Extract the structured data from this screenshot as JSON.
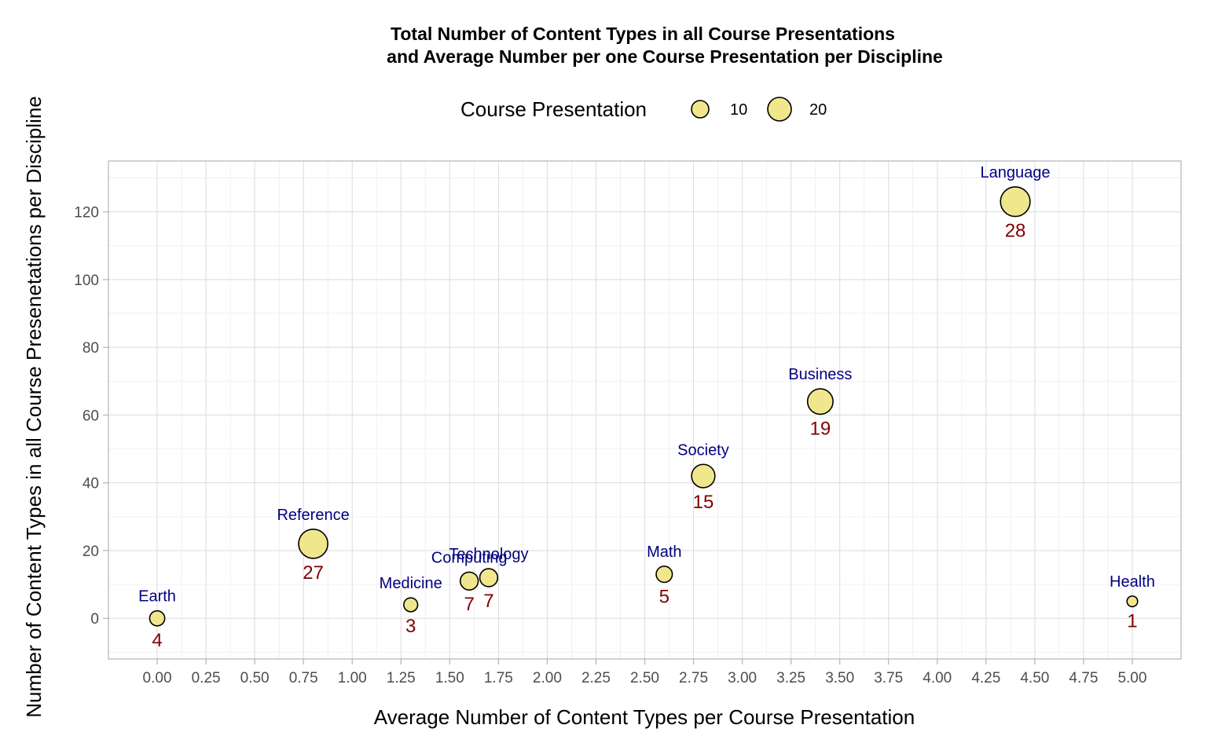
{
  "chart_data": {
    "type": "scatter",
    "title": "Total Number of Content Types in all Course Presentations\n and Average Number per one Course Presentation per Discipline",
    "title_lines": [
      "Total Number of Content Types in all Course Presentations",
      "and Average Number per one Course Presentation per Discipline"
    ],
    "xlabel": "Average Number of Content Types per Course Presentation",
    "ylabel": "Number of Content Types in all Course Presenetations per Discipline",
    "xlim": [
      -0.25,
      5.25
    ],
    "ylim": [
      -12,
      135
    ],
    "x_ticks": [
      0,
      0.25,
      0.5,
      0.75,
      1,
      1.25,
      1.5,
      1.75,
      2,
      2.25,
      2.5,
      2.75,
      3,
      3.25,
      3.5,
      3.75,
      4,
      4.25,
      4.5,
      4.75,
      5
    ],
    "x_tick_labels": [
      "0.00",
      "0.25",
      "0.50",
      "0.75",
      "1.00",
      "1.25",
      "1.50",
      "1.75",
      "2.00",
      "2.25",
      "2.50",
      "2.75",
      "3.00",
      "3.25",
      "3.50",
      "3.75",
      "4.00",
      "4.25",
      "4.50",
      "4.75",
      "5.00"
    ],
    "y_ticks": [
      0,
      20,
      40,
      60,
      80,
      100,
      120
    ],
    "y_tick_labels": [
      "0",
      "20",
      "40",
      "60",
      "80",
      "100",
      "120"
    ],
    "grid": true,
    "legend": {
      "title": "Course Presentation",
      "placement": "top",
      "entries": [
        {
          "label": "10",
          "size_value": 10
        },
        {
          "label": "20",
          "size_value": 20
        }
      ]
    },
    "size_variable": "Course Presentation",
    "colors": {
      "bubble_fill": "#f0e68c",
      "bubble_stroke": "#000000",
      "name_label": "#000080",
      "count_label": "#800000"
    },
    "points": [
      {
        "name": "Earth",
        "x": 0.0,
        "y": 0,
        "size": 4,
        "count_label": "4"
      },
      {
        "name": "Reference",
        "x": 0.8,
        "y": 22,
        "size": 27,
        "count_label": "27"
      },
      {
        "name": "Medicine",
        "x": 1.3,
        "y": 4,
        "size": 3,
        "count_label": "3"
      },
      {
        "name": "Computing",
        "x": 1.6,
        "y": 11,
        "size": 7,
        "count_label": "7"
      },
      {
        "name": "Technology",
        "x": 1.7,
        "y": 12,
        "size": 7,
        "count_label": "7"
      },
      {
        "name": "Math",
        "x": 2.6,
        "y": 13,
        "size": 5,
        "count_label": "5"
      },
      {
        "name": "Society",
        "x": 2.8,
        "y": 42,
        "size": 15,
        "count_label": "15"
      },
      {
        "name": "Business",
        "x": 3.4,
        "y": 64,
        "size": 19,
        "count_label": "19"
      },
      {
        "name": "Language",
        "x": 4.4,
        "y": 123,
        "size": 28,
        "count_label": "28"
      },
      {
        "name": "Health",
        "x": 5.0,
        "y": 5,
        "size": 1,
        "count_label": "1"
      }
    ]
  }
}
